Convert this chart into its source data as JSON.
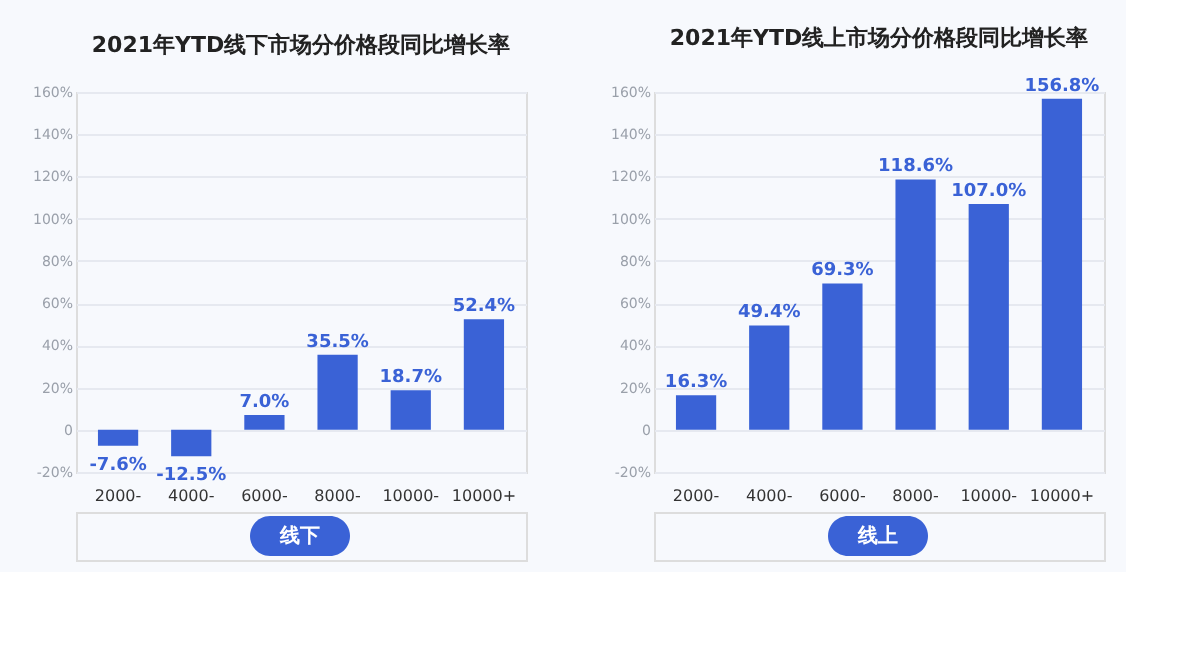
{
  "chart_data": [
    {
      "type": "bar",
      "title": "2021年YTD线下市场分价格段同比增长率",
      "categories": [
        "2000-",
        "4000-",
        "6000-",
        "8000-",
        "10000-",
        "10000+"
      ],
      "values": [
        -7.6,
        -12.5,
        7.0,
        35.5,
        18.7,
        52.4
      ],
      "value_labels": [
        "-7.6%",
        "-12.5%",
        "7.0%",
        "35.5%",
        "18.7%",
        "52.4%"
      ],
      "color": "#3a62d6",
      "ylim": [
        -20,
        160
      ],
      "yticks": [
        {
          "value": -20,
          "label": "-20%"
        },
        {
          "value": 0,
          "label": "0"
        },
        {
          "value": 20,
          "label": "20%"
        },
        {
          "value": 40,
          "label": "40%"
        },
        {
          "value": 60,
          "label": "60%"
        },
        {
          "value": 80,
          "label": "80%"
        },
        {
          "value": 100,
          "label": "100%"
        },
        {
          "value": 120,
          "label": "120%"
        },
        {
          "value": 140,
          "label": "140%"
        },
        {
          "value": 160,
          "label": "160%"
        }
      ],
      "grid": "y",
      "annotations": [
        "线下"
      ]
    },
    {
      "type": "bar",
      "title": "2021年YTD线上市场分价格段同比增长率",
      "categories": [
        "2000-",
        "4000-",
        "6000-",
        "8000-",
        "10000-",
        "10000+"
      ],
      "values": [
        16.3,
        49.4,
        69.3,
        118.6,
        107.0,
        156.8
      ],
      "value_labels": [
        "16.3%",
        "49.4%",
        "69.3%",
        "118.6%",
        "107.0%",
        "156.8%"
      ],
      "color": "#3a62d6",
      "ylim": [
        -20,
        160
      ],
      "yticks": [
        {
          "value": -20,
          "label": "-20%"
        },
        {
          "value": 0,
          "label": "0"
        },
        {
          "value": 20,
          "label": "20%"
        },
        {
          "value": 40,
          "label": "40%"
        },
        {
          "value": 60,
          "label": "60%"
        },
        {
          "value": 80,
          "label": "80%"
        },
        {
          "value": 100,
          "label": "100%"
        },
        {
          "value": 120,
          "label": "120%"
        },
        {
          "value": 140,
          "label": "140%"
        },
        {
          "value": 160,
          "label": "160%"
        }
      ],
      "grid": "y",
      "annotations": [
        "线上"
      ]
    }
  ]
}
